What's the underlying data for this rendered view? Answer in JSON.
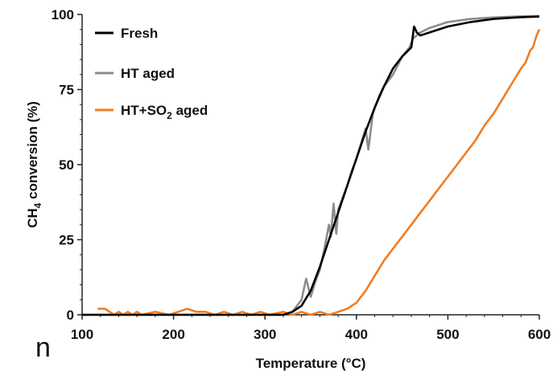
{
  "chart_data": {
    "type": "line",
    "xlabel": "Temperature (°C)",
    "ylabel": "CH4 conversion (%)",
    "xlim": [
      100,
      600
    ],
    "ylim": [
      0,
      100
    ],
    "xticks": [
      100,
      200,
      300,
      400,
      500,
      600
    ],
    "yticks": [
      0,
      25,
      50,
      75,
      100
    ],
    "legend_position": "top-left",
    "grid": false,
    "series": [
      {
        "name": "Fresh",
        "color": "#000000",
        "points": [
          [
            100,
            0
          ],
          [
            320,
            0
          ],
          [
            330,
            1
          ],
          [
            340,
            3
          ],
          [
            350,
            8
          ],
          [
            360,
            16
          ],
          [
            370,
            25
          ],
          [
            380,
            34
          ],
          [
            390,
            43
          ],
          [
            400,
            52
          ],
          [
            410,
            61
          ],
          [
            420,
            69
          ],
          [
            430,
            76
          ],
          [
            440,
            82
          ],
          [
            450,
            86
          ],
          [
            460,
            89
          ],
          [
            463,
            96
          ],
          [
            466,
            94
          ],
          [
            470,
            93
          ],
          [
            480,
            94
          ],
          [
            500,
            96
          ],
          [
            525,
            97.5
          ],
          [
            550,
            98.5
          ],
          [
            575,
            99
          ],
          [
            600,
            99.3
          ]
        ]
      },
      {
        "name": "HT aged",
        "color": "#8c8c8c",
        "points": [
          [
            100,
            0
          ],
          [
            320,
            0
          ],
          [
            330,
            1
          ],
          [
            335,
            3
          ],
          [
            340,
            5
          ],
          [
            345,
            12
          ],
          [
            350,
            6
          ],
          [
            355,
            11
          ],
          [
            360,
            15
          ],
          [
            365,
            22
          ],
          [
            370,
            30
          ],
          [
            372,
            26
          ],
          [
            375,
            37
          ],
          [
            378,
            27
          ],
          [
            380,
            35
          ],
          [
            390,
            43
          ],
          [
            395,
            48
          ],
          [
            400,
            52
          ],
          [
            405,
            57
          ],
          [
            410,
            62
          ],
          [
            413,
            55
          ],
          [
            418,
            67
          ],
          [
            425,
            73
          ],
          [
            430,
            76
          ],
          [
            435,
            78
          ],
          [
            440,
            80
          ],
          [
            445,
            83
          ],
          [
            450,
            86
          ],
          [
            458,
            89
          ],
          [
            462,
            92
          ],
          [
            470,
            94
          ],
          [
            480,
            95.5
          ],
          [
            500,
            97.5
          ],
          [
            525,
            98.5
          ],
          [
            550,
            99
          ],
          [
            575,
            99.3
          ],
          [
            600,
            99.5
          ]
        ]
      },
      {
        "name": "HT+SO2 aged",
        "color": "#f07d23",
        "points": [
          [
            117,
            2
          ],
          [
            125,
            2
          ],
          [
            130,
            1
          ],
          [
            135,
            0
          ],
          [
            140,
            1
          ],
          [
            145,
            0
          ],
          [
            150,
            1
          ],
          [
            155,
            0
          ],
          [
            160,
            1
          ],
          [
            165,
            0
          ],
          [
            180,
            1
          ],
          [
            195,
            0
          ],
          [
            205,
            1
          ],
          [
            215,
            2
          ],
          [
            225,
            1
          ],
          [
            235,
            1
          ],
          [
            245,
            0
          ],
          [
            255,
            1
          ],
          [
            265,
            0
          ],
          [
            275,
            1
          ],
          [
            285,
            0
          ],
          [
            295,
            1
          ],
          [
            305,
            0
          ],
          [
            320,
            1
          ],
          [
            330,
            0
          ],
          [
            340,
            1
          ],
          [
            350,
            0
          ],
          [
            360,
            1
          ],
          [
            370,
            0
          ],
          [
            380,
            1
          ],
          [
            390,
            2
          ],
          [
            400,
            4
          ],
          [
            410,
            8
          ],
          [
            420,
            13
          ],
          [
            430,
            18
          ],
          [
            440,
            22
          ],
          [
            450,
            26
          ],
          [
            460,
            30
          ],
          [
            470,
            34
          ],
          [
            480,
            38
          ],
          [
            490,
            42
          ],
          [
            500,
            46
          ],
          [
            510,
            50
          ],
          [
            520,
            54
          ],
          [
            530,
            58
          ],
          [
            540,
            63
          ],
          [
            550,
            67
          ],
          [
            560,
            72
          ],
          [
            570,
            77
          ],
          [
            580,
            82
          ],
          [
            585,
            84
          ],
          [
            590,
            88
          ],
          [
            593,
            89
          ],
          [
            597,
            93
          ],
          [
            600,
            95
          ]
        ]
      }
    ]
  },
  "legend": {
    "items": [
      "Fresh",
      "HT aged",
      "HT+SO"
    ],
    "subscript": "2",
    "suffix": " aged"
  },
  "axis": {
    "ylabel_main": "CH",
    "ylabel_sub": "4",
    "ylabel_rest": " conversion (%)",
    "xlabel": "Temperature (°C)"
  },
  "stray_text": "n"
}
